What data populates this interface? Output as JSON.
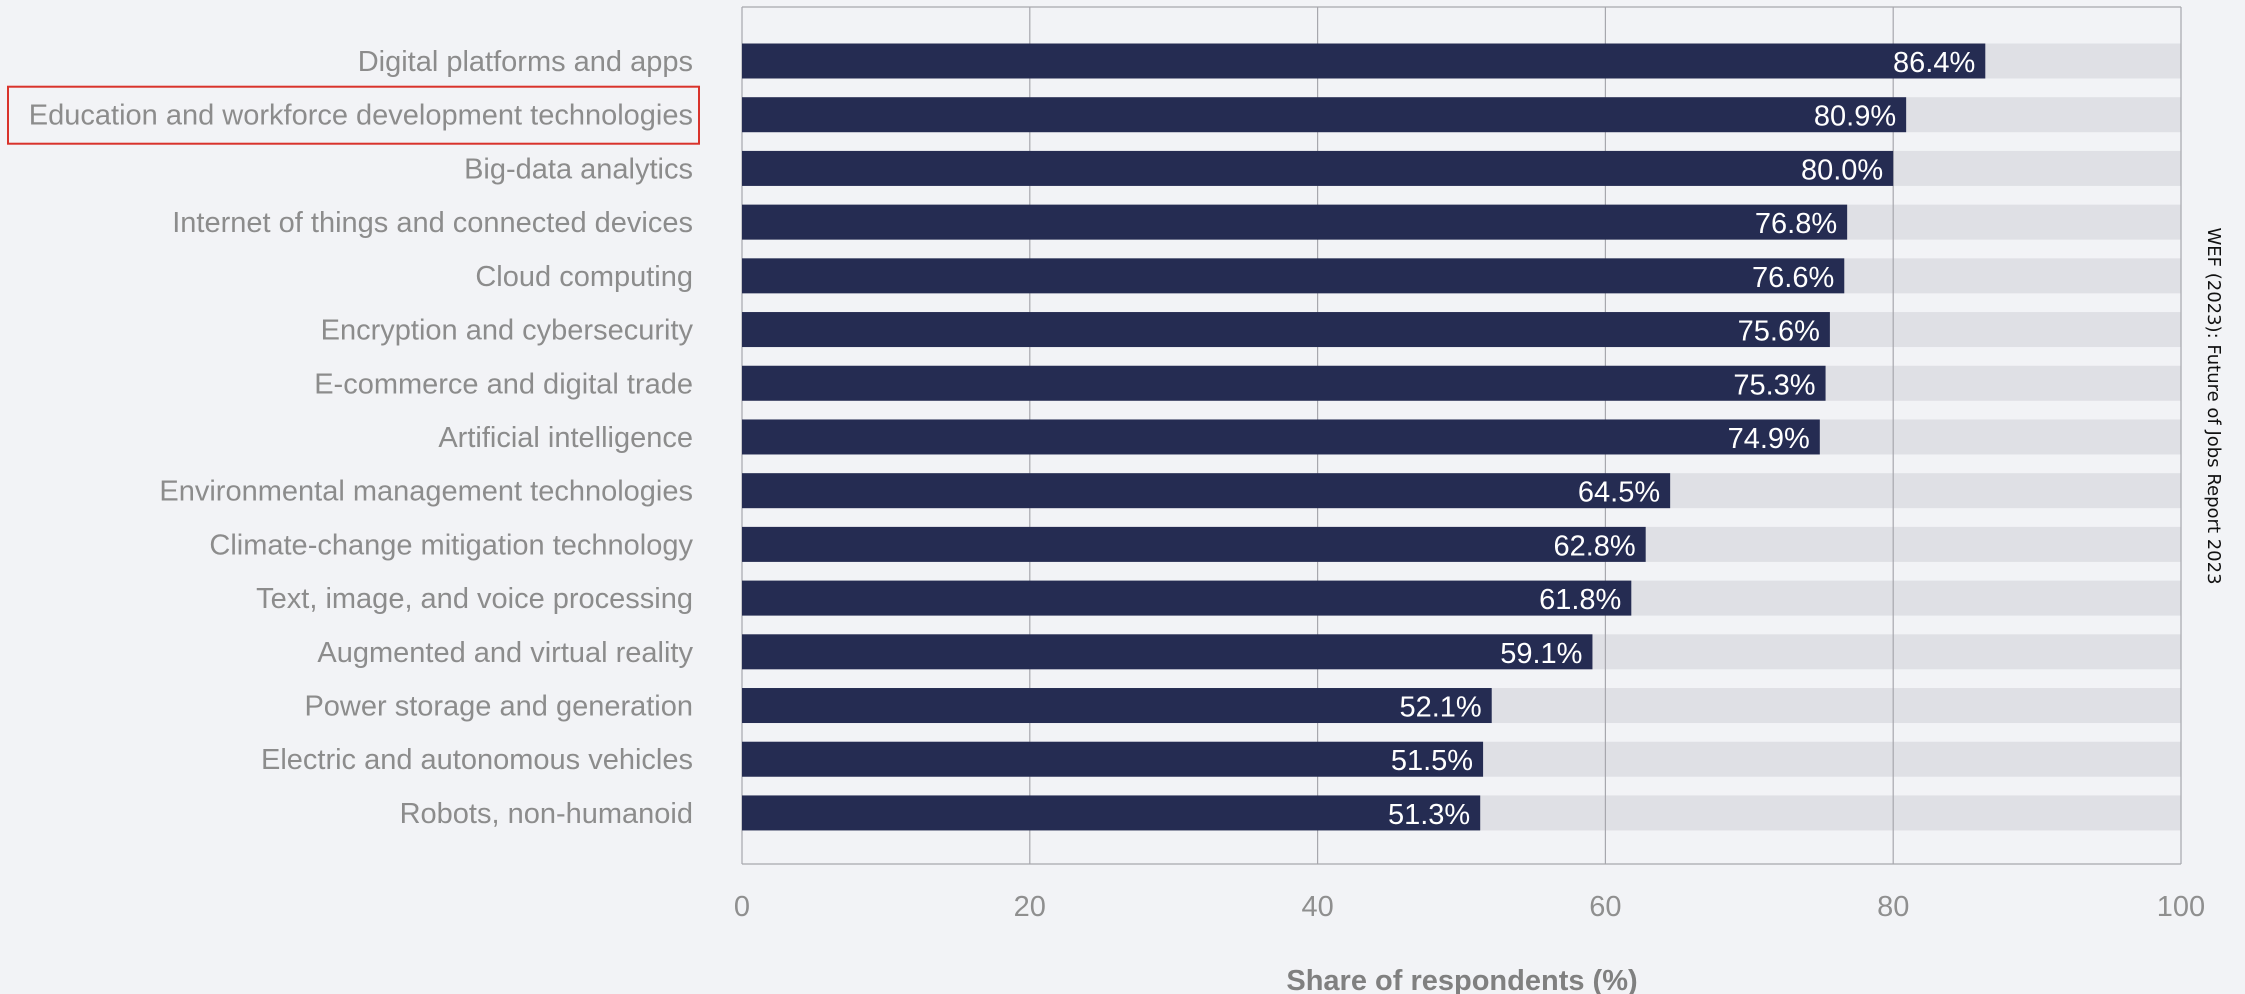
{
  "chart_data": {
    "type": "bar",
    "orientation": "horizontal",
    "categories": [
      "Digital platforms and apps",
      "Education and workforce development technologies",
      "Big-data analytics",
      "Internet of things and connected devices",
      "Cloud computing",
      "Encryption and cybersecurity",
      "E-commerce and digital trade",
      "Artificial intelligence",
      "Environmental management technologies",
      "Climate-change mitigation technology",
      "Text, image, and voice processing",
      "Augmented and virtual reality",
      "Power storage and generation",
      "Electric and autonomous vehicles",
      "Robots, non-humanoid"
    ],
    "values": [
      86.4,
      80.9,
      80.0,
      76.8,
      76.6,
      75.6,
      75.3,
      74.9,
      64.5,
      62.8,
      61.8,
      59.1,
      52.1,
      51.5,
      51.3
    ],
    "value_labels": [
      "86.4%",
      "80.9%",
      "80.0%",
      "76.8%",
      "76.6%",
      "75.6%",
      "75.3%",
      "74.9%",
      "64.5%",
      "62.8%",
      "61.8%",
      "59.1%",
      "52.1%",
      "51.5%",
      "51.3%"
    ],
    "xlabel": "Share of respondents (%)",
    "ylabel": "",
    "xlim": [
      0,
      100
    ],
    "xticks": [
      0,
      20,
      40,
      60,
      80,
      100
    ],
    "xtick_labels": [
      "0",
      "20",
      "40",
      "60",
      "80",
      "100"
    ],
    "grid": true,
    "highlighted_category": "Education and workforce development technologies",
    "source": "WEF (2023): Future of Jobs Report 2023",
    "colors": {
      "bar": "#252c52",
      "track": "#dfe0e5",
      "background": "#f2f3f6",
      "label_text": "#8c8c8c",
      "value_text": "#ffffff",
      "highlight_box": "#d9332b",
      "grid": "#a7a7ad",
      "axis_title": "#808080",
      "source_text": "#111111"
    }
  }
}
